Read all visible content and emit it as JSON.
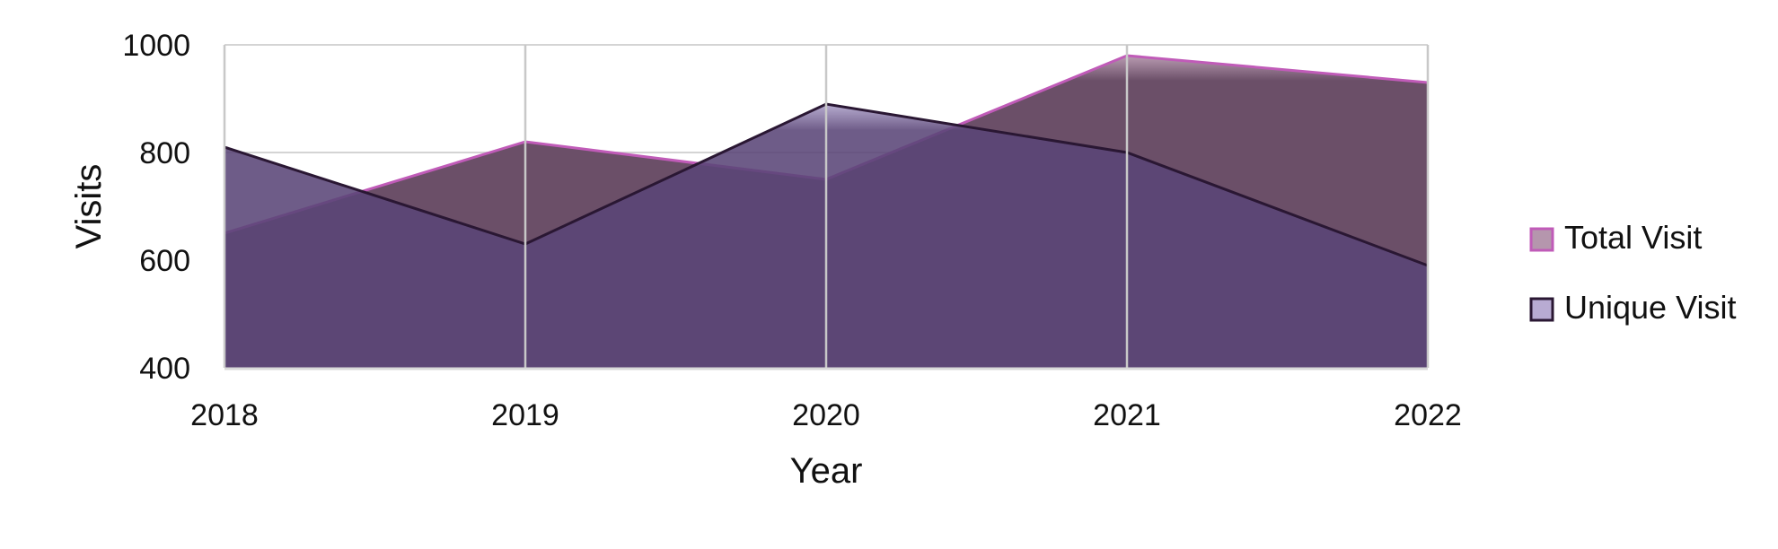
{
  "chart_data": {
    "type": "area",
    "title": "",
    "xlabel": "Year",
    "ylabel": "Visits",
    "x": [
      "2018",
      "2019",
      "2020",
      "2021",
      "2022"
    ],
    "ylim": [
      400,
      1000
    ],
    "yticks": [
      400,
      600,
      800,
      1000
    ],
    "grid": {
      "horizontal": true,
      "vertical": true
    },
    "legend_position": "right",
    "series": [
      {
        "name": "Total Visit",
        "values": [
          650,
          820,
          750,
          980,
          930
        ],
        "fill": "#6b4f68",
        "line": "#c05bb8",
        "legend_fill": "#b596ad"
      },
      {
        "name": "Unique Visit",
        "values": [
          810,
          630,
          890,
          800,
          590
        ],
        "fill": "#5a4577",
        "line": "#2a1733",
        "legend_fill": "#b8abd2"
      }
    ]
  }
}
